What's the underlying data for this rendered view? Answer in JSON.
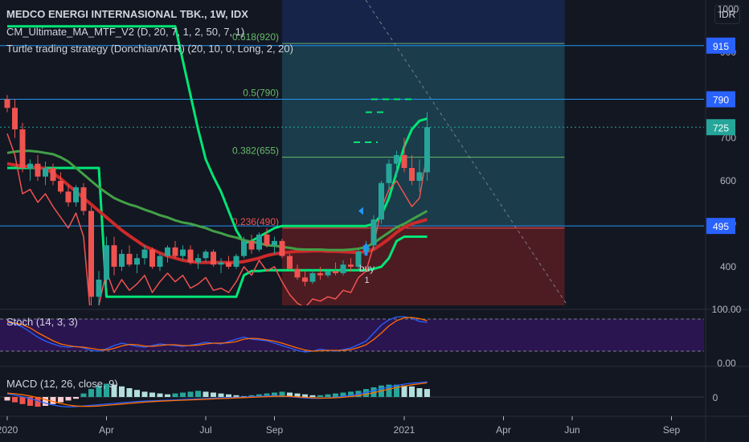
{
  "header": {
    "title": "MEDCO ENERGI INTERNASIONAL TBK., 1W, IDX",
    "indicator1": "CM_Ultimate_MA_MTF_V2 (D, 20, 7, 1, 2, 50, 7, 1)",
    "indicator2": "Turtle trading strategy (Donchian/ATR) (20, 10, 0, Long, 2, 20)",
    "currency": "IDR"
  },
  "colors": {
    "background": "#131722",
    "up": "#26a69a",
    "down": "#ef5350",
    "ma_green": "#00e676",
    "ma_red": "#cc2a2a",
    "hline": "#2196f3",
    "fib": "#66bb6a",
    "stoch_bg": "#4a148c",
    "target_zone": "#1e4d5c",
    "stop_zone": "#5c1e23"
  },
  "chart_data": [
    {
      "type": "candlestick",
      "title": "MEDCO ENERGI INTERNASIONAL TBK., 1W, IDX",
      "ylim": [
        310,
        1010
      ],
      "y_ticks": [
        400,
        500,
        600,
        700,
        900,
        1000
      ],
      "x_ticks": [
        "2020",
        "Apr",
        "Jul",
        "Sep",
        "2021",
        "Apr",
        "Jun",
        "Sep"
      ],
      "x_tick_week": [
        0,
        13,
        26,
        35,
        52,
        65,
        74,
        87
      ],
      "candles": [
        {
          "o": 790,
          "h": 800,
          "l": 760,
          "c": 770
        },
        {
          "o": 770,
          "h": 790,
          "l": 700,
          "c": 720
        },
        {
          "o": 720,
          "h": 735,
          "l": 620,
          "c": 630
        },
        {
          "o": 630,
          "h": 650,
          "l": 600,
          "c": 640
        },
        {
          "o": 640,
          "h": 660,
          "l": 600,
          "c": 610
        },
        {
          "o": 610,
          "h": 645,
          "l": 590,
          "c": 630
        },
        {
          "o": 630,
          "h": 640,
          "l": 590,
          "c": 600
        },
        {
          "o": 600,
          "h": 620,
          "l": 570,
          "c": 575
        },
        {
          "o": 575,
          "h": 590,
          "l": 540,
          "c": 550
        },
        {
          "o": 550,
          "h": 590,
          "l": 540,
          "c": 585
        },
        {
          "o": 585,
          "h": 595,
          "l": 520,
          "c": 530
        },
        {
          "o": 530,
          "h": 540,
          "l": 310,
          "c": 330
        },
        {
          "o": 330,
          "h": 390,
          "l": 300,
          "c": 370
        },
        {
          "o": 370,
          "h": 470,
          "l": 350,
          "c": 450
        },
        {
          "o": 450,
          "h": 470,
          "l": 380,
          "c": 400
        },
        {
          "o": 400,
          "h": 440,
          "l": 390,
          "c": 430
        },
        {
          "o": 430,
          "h": 450,
          "l": 400,
          "c": 405
        },
        {
          "o": 405,
          "h": 430,
          "l": 385,
          "c": 420
        },
        {
          "o": 420,
          "h": 450,
          "l": 405,
          "c": 440
        },
        {
          "o": 440,
          "h": 445,
          "l": 395,
          "c": 400
        },
        {
          "o": 400,
          "h": 430,
          "l": 390,
          "c": 425
        },
        {
          "o": 425,
          "h": 450,
          "l": 410,
          "c": 445
        },
        {
          "o": 445,
          "h": 460,
          "l": 420,
          "c": 425
        },
        {
          "o": 425,
          "h": 450,
          "l": 415,
          "c": 440
        },
        {
          "o": 440,
          "h": 450,
          "l": 405,
          "c": 410
        },
        {
          "o": 410,
          "h": 430,
          "l": 395,
          "c": 420
        },
        {
          "o": 420,
          "h": 440,
          "l": 410,
          "c": 435
        },
        {
          "o": 435,
          "h": 440,
          "l": 400,
          "c": 405
        },
        {
          "o": 405,
          "h": 420,
          "l": 385,
          "c": 410
        },
        {
          "o": 410,
          "h": 425,
          "l": 395,
          "c": 400
        },
        {
          "o": 400,
          "h": 430,
          "l": 395,
          "c": 425
        },
        {
          "o": 425,
          "h": 470,
          "l": 420,
          "c": 460
        },
        {
          "o": 460,
          "h": 475,
          "l": 430,
          "c": 440
        },
        {
          "o": 440,
          "h": 480,
          "l": 435,
          "c": 475
        },
        {
          "o": 475,
          "h": 490,
          "l": 445,
          "c": 450
        },
        {
          "o": 450,
          "h": 470,
          "l": 430,
          "c": 460
        },
        {
          "o": 460,
          "h": 465,
          "l": 420,
          "c": 425
        },
        {
          "o": 425,
          "h": 430,
          "l": 390,
          "c": 395
        },
        {
          "o": 395,
          "h": 405,
          "l": 370,
          "c": 375
        },
        {
          "o": 375,
          "h": 390,
          "l": 355,
          "c": 365
        },
        {
          "o": 365,
          "h": 395,
          "l": 360,
          "c": 385
        },
        {
          "o": 385,
          "h": 400,
          "l": 370,
          "c": 380
        },
        {
          "o": 380,
          "h": 395,
          "l": 375,
          "c": 390
        },
        {
          "o": 390,
          "h": 410,
          "l": 380,
          "c": 385
        },
        {
          "o": 385,
          "h": 415,
          "l": 380,
          "c": 405
        },
        {
          "o": 405,
          "h": 420,
          "l": 390,
          "c": 400
        },
        {
          "o": 400,
          "h": 440,
          "l": 395,
          "c": 435
        },
        {
          "o": 435,
          "h": 460,
          "l": 425,
          "c": 450
        },
        {
          "o": 450,
          "h": 520,
          "l": 440,
          "c": 510
        },
        {
          "o": 510,
          "h": 600,
          "l": 500,
          "c": 595
        },
        {
          "o": 595,
          "h": 650,
          "l": 580,
          "c": 640
        },
        {
          "o": 640,
          "h": 670,
          "l": 610,
          "c": 660
        },
        {
          "o": 660,
          "h": 700,
          "l": 620,
          "c": 630
        },
        {
          "o": 630,
          "h": 660,
          "l": 590,
          "c": 600
        },
        {
          "o": 600,
          "h": 650,
          "l": 575,
          "c": 620
        },
        {
          "o": 620,
          "h": 760,
          "l": 600,
          "c": 725
        }
      ],
      "ma_green": [
        665,
        668,
        670,
        670,
        668,
        665,
        662,
        655,
        645,
        630,
        615,
        600,
        585,
        572,
        560,
        552,
        545,
        540,
        533,
        527,
        520,
        515,
        508,
        503,
        500,
        495,
        490,
        483,
        478,
        472,
        468,
        462,
        458,
        455,
        450,
        449,
        446,
        444,
        441,
        440,
        440,
        440,
        439,
        439,
        439,
        440,
        442,
        446,
        455,
        468,
        480,
        492,
        500,
        510,
        520,
        530
      ],
      "ma_red": [
        640,
        637,
        634,
        633,
        632,
        628,
        618,
        605,
        590,
        575,
        560,
        545,
        530,
        515,
        500,
        485,
        472,
        460,
        448,
        440,
        432,
        425,
        420,
        415,
        412,
        410,
        410,
        410,
        410,
        410,
        410,
        412,
        416,
        420,
        426,
        430,
        432,
        434,
        436,
        436,
        437,
        437,
        436,
        436,
        435,
        434,
        433,
        435,
        440,
        452,
        465,
        480,
        492,
        500,
        505,
        510
      ],
      "donchian_upper": [
        960,
        960,
        960,
        960,
        960,
        960,
        960,
        960,
        960,
        960,
        960,
        960,
        960,
        960,
        960,
        960,
        960,
        960,
        960,
        960,
        960,
        960,
        960,
        880,
        800,
        720,
        650,
        610,
        575,
        530,
        485,
        455,
        460,
        470,
        480,
        490,
        495,
        495,
        495,
        495,
        495,
        495,
        495,
        495,
        495,
        495,
        495,
        495,
        500,
        520,
        560,
        620,
        680,
        720,
        740,
        745
      ],
      "donchian_lower": [
        630,
        630,
        630,
        630,
        630,
        630,
        630,
        630,
        630,
        630,
        630,
        630,
        630,
        330,
        330,
        330,
        330,
        330,
        330,
        330,
        330,
        330,
        330,
        330,
        330,
        330,
        330,
        330,
        330,
        330,
        330,
        380,
        390,
        390,
        392,
        392,
        392,
        392,
        392,
        392,
        392,
        392,
        392,
        392,
        392,
        392,
        392,
        392,
        395,
        400,
        420,
        460,
        470,
        470,
        470,
        470
      ],
      "fib_levels": [
        {
          "label": "0.236(490)",
          "value": 490
        },
        {
          "label": "0.382(655)",
          "value": 655
        },
        {
          "label": "0.5(790)",
          "value": 790
        },
        {
          "label": "0.618(920)",
          "value": 920
        }
      ],
      "price_lines": [
        915,
        790,
        495
      ],
      "price_labels": [
        "915",
        "790",
        "725",
        "495"
      ],
      "last_price": 725,
      "trade": {
        "entry": 495,
        "target": 915,
        "stop": 310,
        "start_week": 36,
        "end_week": 73
      },
      "signal": {
        "label": "buy",
        "sub": "1",
        "week": 47,
        "price": 430
      }
    },
    {
      "type": "line",
      "title": "Stoch (14, 3, 3)",
      "ylim": [
        0,
        100
      ],
      "y_ticks": [
        "100.00",
        "0.00"
      ],
      "k": [
        80,
        78,
        70,
        58,
        45,
        35,
        28,
        22,
        20,
        22,
        18,
        12,
        10,
        16,
        24,
        30,
        26,
        22,
        20,
        24,
        28,
        26,
        24,
        22,
        25,
        28,
        32,
        30,
        28,
        34,
        40,
        45,
        40,
        38,
        36,
        30,
        24,
        18,
        12,
        8,
        10,
        15,
        12,
        10,
        14,
        18,
        26,
        35,
        55,
        75,
        88,
        95,
        96,
        92,
        84,
        82
      ],
      "d": [
        82,
        80,
        76,
        68,
        56,
        46,
        36,
        28,
        24,
        21,
        20,
        17,
        14,
        13,
        17,
        23,
        27,
        26,
        23,
        22,
        24,
        26,
        26,
        24,
        24,
        25,
        28,
        30,
        30,
        31,
        34,
        40,
        42,
        41,
        38,
        35,
        30,
        24,
        18,
        13,
        10,
        11,
        12,
        12,
        12,
        14,
        19,
        26,
        39,
        55,
        73,
        86,
        93,
        94,
        91,
        86
      ]
    },
    {
      "type": "bar",
      "title": "MACD (12, 26, close, 9)",
      "y_ticks": [
        "0"
      ],
      "hist": [
        -8,
        -12,
        -16,
        -20,
        -22,
        -20,
        -16,
        -12,
        -8,
        -4,
        8,
        18,
        26,
        30,
        28,
        24,
        20,
        16,
        12,
        10,
        8,
        6,
        8,
        10,
        12,
        14,
        12,
        10,
        8,
        6,
        4,
        2,
        4,
        6,
        8,
        10,
        12,
        10,
        8,
        6,
        4,
        4,
        6,
        8,
        10,
        12,
        14,
        18,
        22,
        26,
        28,
        28,
        26,
        24,
        20,
        18
      ],
      "macd": [
        20,
        12,
        2,
        -10,
        -24,
        -38,
        -50,
        -58,
        -62,
        -60,
        -56,
        -52,
        -48,
        -44,
        -40,
        -36,
        -32,
        -28,
        -26,
        -24,
        -22,
        -20,
        -18,
        -16,
        -14,
        -12,
        -10,
        -8,
        -6,
        -4,
        -2,
        0,
        2,
        4,
        6,
        8,
        6,
        2,
        -2,
        -6,
        -8,
        -8,
        -6,
        -2,
        4,
        10,
        18,
        28,
        40,
        52,
        62,
        72,
        80,
        86,
        90,
        94
      ],
      "signal": [
        24,
        20,
        14,
        6,
        -4,
        -16,
        -28,
        -40,
        -50,
        -56,
        -58,
        -58,
        -56,
        -52,
        -48,
        -44,
        -40,
        -36,
        -32,
        -29,
        -26,
        -24,
        -22,
        -20,
        -18,
        -16,
        -14,
        -12,
        -10,
        -8,
        -6,
        -4,
        -2,
        0,
        2,
        4,
        5,
        4,
        1,
        -2,
        -5,
        -7,
        -7,
        -5,
        -2,
        3,
        9,
        17,
        27,
        38,
        49,
        59,
        68,
        76,
        82,
        88
      ]
    }
  ]
}
